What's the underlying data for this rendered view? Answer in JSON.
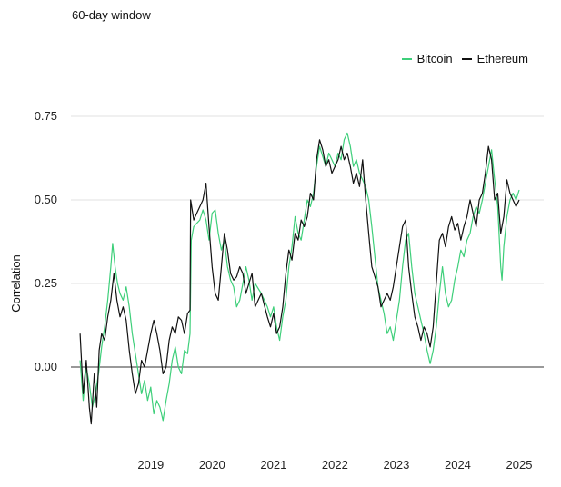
{
  "header": {
    "subtitle": "60-day window"
  },
  "legend": [
    {
      "name": "Bitcoin",
      "color": "#3ecf7a"
    },
    {
      "name": "Ethereum",
      "color": "#111111"
    }
  ],
  "chart_data": {
    "type": "line",
    "title": "",
    "subtitle": "60-day window",
    "xlabel": "",
    "ylabel": "Correlation",
    "ylim": [
      -0.2,
      0.75
    ],
    "yticks": [
      0.0,
      0.25,
      0.5,
      0.75
    ],
    "ytick_labels": [
      "0.00",
      "0.25",
      "0.50",
      "0.75"
    ],
    "xlim": [
      2018.2,
      2025.9
    ],
    "xticks": [
      2019,
      2020,
      2021,
      2022,
      2023,
      2024,
      2025
    ],
    "xtick_labels": [
      "2019",
      "2020",
      "2021",
      "2022",
      "2023",
      "2024",
      "2025"
    ],
    "grid": "horizontal",
    "legend_position": "top-right",
    "series": [
      {
        "name": "Bitcoin",
        "color": "#3ecf7a",
        "points": [
          [
            2018.35,
            0.02
          ],
          [
            2018.4,
            -0.1
          ],
          [
            2018.45,
            0.0
          ],
          [
            2018.5,
            -0.05
          ],
          [
            2018.55,
            -0.12
          ],
          [
            2018.6,
            -0.08
          ],
          [
            2018.65,
            -0.02
          ],
          [
            2018.7,
            0.06
          ],
          [
            2018.75,
            0.12
          ],
          [
            2018.8,
            0.2
          ],
          [
            2018.85,
            0.3
          ],
          [
            2018.88,
            0.37
          ],
          [
            2018.92,
            0.3
          ],
          [
            2018.96,
            0.25
          ],
          [
            2019.0,
            0.22
          ],
          [
            2019.05,
            0.2
          ],
          [
            2019.1,
            0.24
          ],
          [
            2019.15,
            0.18
          ],
          [
            2019.2,
            0.1
          ],
          [
            2019.25,
            0.04
          ],
          [
            2019.3,
            -0.02
          ],
          [
            2019.35,
            -0.08
          ],
          [
            2019.4,
            -0.04
          ],
          [
            2019.45,
            -0.1
          ],
          [
            2019.5,
            -0.06
          ],
          [
            2019.55,
            -0.14
          ],
          [
            2019.6,
            -0.1
          ],
          [
            2019.65,
            -0.12
          ],
          [
            2019.7,
            -0.16
          ],
          [
            2019.75,
            -0.1
          ],
          [
            2019.8,
            -0.05
          ],
          [
            2019.85,
            0.02
          ],
          [
            2019.9,
            0.06
          ],
          [
            2019.95,
            0.0
          ],
          [
            2020.0,
            -0.02
          ],
          [
            2020.05,
            0.05
          ],
          [
            2020.1,
            0.04
          ],
          [
            2020.14,
            0.1
          ],
          [
            2020.16,
            0.38
          ],
          [
            2020.2,
            0.42
          ],
          [
            2020.3,
            0.44
          ],
          [
            2020.35,
            0.47
          ],
          [
            2020.4,
            0.44
          ],
          [
            2020.45,
            0.38
          ],
          [
            2020.5,
            0.46
          ],
          [
            2020.55,
            0.47
          ],
          [
            2020.6,
            0.4
          ],
          [
            2020.65,
            0.35
          ],
          [
            2020.7,
            0.38
          ],
          [
            2020.75,
            0.3
          ],
          [
            2020.8,
            0.26
          ],
          [
            2020.85,
            0.24
          ],
          [
            2020.9,
            0.18
          ],
          [
            2020.95,
            0.2
          ],
          [
            2021.0,
            0.25
          ],
          [
            2021.05,
            0.3
          ],
          [
            2021.1,
            0.26
          ],
          [
            2021.15,
            0.2
          ],
          [
            2021.2,
            0.25
          ],
          [
            2021.3,
            0.22
          ],
          [
            2021.4,
            0.18
          ],
          [
            2021.45,
            0.15
          ],
          [
            2021.5,
            0.18
          ],
          [
            2021.55,
            0.12
          ],
          [
            2021.6,
            0.08
          ],
          [
            2021.65,
            0.15
          ],
          [
            2021.7,
            0.2
          ],
          [
            2021.75,
            0.3
          ],
          [
            2021.8,
            0.36
          ],
          [
            2021.85,
            0.45
          ],
          [
            2021.9,
            0.4
          ],
          [
            2021.95,
            0.38
          ],
          [
            2022.0,
            0.44
          ],
          [
            2022.05,
            0.5
          ],
          [
            2022.1,
            0.48
          ],
          [
            2022.15,
            0.52
          ],
          [
            2022.2,
            0.6
          ],
          [
            2022.25,
            0.66
          ],
          [
            2022.3,
            0.63
          ],
          [
            2022.35,
            0.6
          ],
          [
            2022.4,
            0.64
          ],
          [
            2022.45,
            0.62
          ],
          [
            2022.5,
            0.6
          ],
          [
            2022.55,
            0.64
          ],
          [
            2022.6,
            0.62
          ],
          [
            2022.65,
            0.68
          ],
          [
            2022.7,
            0.7
          ],
          [
            2022.75,
            0.66
          ],
          [
            2022.8,
            0.6
          ],
          [
            2022.85,
            0.62
          ],
          [
            2022.9,
            0.58
          ],
          [
            2022.95,
            0.56
          ],
          [
            2023.0,
            0.54
          ],
          [
            2023.05,
            0.5
          ],
          [
            2023.1,
            0.42
          ],
          [
            2023.15,
            0.33
          ],
          [
            2023.2,
            0.24
          ],
          [
            2023.25,
            0.2
          ],
          [
            2023.3,
            0.16
          ],
          [
            2023.35,
            0.1
          ],
          [
            2023.4,
            0.12
          ],
          [
            2023.45,
            0.08
          ],
          [
            2023.5,
            0.14
          ],
          [
            2023.55,
            0.2
          ],
          [
            2023.6,
            0.3
          ],
          [
            2023.65,
            0.38
          ],
          [
            2023.7,
            0.4
          ],
          [
            2023.75,
            0.3
          ],
          [
            2023.8,
            0.22
          ],
          [
            2023.85,
            0.18
          ],
          [
            2023.9,
            0.14
          ],
          [
            2023.95,
            0.1
          ],
          [
            2024.0,
            0.05
          ],
          [
            2024.05,
            0.01
          ],
          [
            2024.1,
            0.05
          ],
          [
            2024.15,
            0.12
          ],
          [
            2024.2,
            0.22
          ],
          [
            2024.25,
            0.3
          ],
          [
            2024.3,
            0.22
          ],
          [
            2024.35,
            0.18
          ],
          [
            2024.4,
            0.2
          ],
          [
            2024.45,
            0.26
          ],
          [
            2024.5,
            0.3
          ],
          [
            2024.55,
            0.35
          ],
          [
            2024.6,
            0.33
          ],
          [
            2024.65,
            0.38
          ],
          [
            2024.7,
            0.4
          ],
          [
            2024.75,
            0.45
          ],
          [
            2024.8,
            0.48
          ],
          [
            2024.85,
            0.46
          ],
          [
            2024.9,
            0.5
          ],
          [
            2024.95,
            0.55
          ],
          [
            2025.0,
            0.6
          ],
          [
            2025.05,
            0.65
          ],
          [
            2025.1,
            0.56
          ],
          [
            2025.15,
            0.48
          ],
          [
            2025.2,
            0.3
          ],
          [
            2025.22,
            0.26
          ],
          [
            2025.25,
            0.36
          ],
          [
            2025.3,
            0.45
          ],
          [
            2025.35,
            0.5
          ],
          [
            2025.4,
            0.52
          ],
          [
            2025.45,
            0.5
          ],
          [
            2025.5,
            0.53
          ]
        ]
      },
      {
        "name": "Ethereum",
        "color": "#111111",
        "points": [
          [
            2018.35,
            0.1
          ],
          [
            2018.4,
            -0.08
          ],
          [
            2018.45,
            0.02
          ],
          [
            2018.5,
            -0.12
          ],
          [
            2018.53,
            -0.17
          ],
          [
            2018.58,
            -0.02
          ],
          [
            2018.62,
            -0.12
          ],
          [
            2018.66,
            0.05
          ],
          [
            2018.7,
            0.1
          ],
          [
            2018.75,
            0.08
          ],
          [
            2018.8,
            0.15
          ],
          [
            2018.85,
            0.2
          ],
          [
            2018.9,
            0.28
          ],
          [
            2018.95,
            0.2
          ],
          [
            2019.0,
            0.15
          ],
          [
            2019.05,
            0.18
          ],
          [
            2019.1,
            0.14
          ],
          [
            2019.15,
            0.05
          ],
          [
            2019.2,
            -0.02
          ],
          [
            2019.25,
            -0.08
          ],
          [
            2019.3,
            -0.05
          ],
          [
            2019.35,
            0.02
          ],
          [
            2019.4,
            0.0
          ],
          [
            2019.45,
            0.05
          ],
          [
            2019.5,
            0.1
          ],
          [
            2019.55,
            0.14
          ],
          [
            2019.6,
            0.1
          ],
          [
            2019.65,
            0.05
          ],
          [
            2019.7,
            -0.02
          ],
          [
            2019.75,
            0.0
          ],
          [
            2019.8,
            0.08
          ],
          [
            2019.85,
            0.12
          ],
          [
            2019.9,
            0.1
          ],
          [
            2019.95,
            0.15
          ],
          [
            2020.0,
            0.14
          ],
          [
            2020.05,
            0.1
          ],
          [
            2020.1,
            0.16
          ],
          [
            2020.14,
            0.17
          ],
          [
            2020.15,
            0.5
          ],
          [
            2020.2,
            0.44
          ],
          [
            2020.25,
            0.46
          ],
          [
            2020.3,
            0.48
          ],
          [
            2020.35,
            0.5
          ],
          [
            2020.4,
            0.55
          ],
          [
            2020.45,
            0.42
          ],
          [
            2020.5,
            0.3
          ],
          [
            2020.55,
            0.22
          ],
          [
            2020.6,
            0.2
          ],
          [
            2020.65,
            0.3
          ],
          [
            2020.7,
            0.4
          ],
          [
            2020.75,
            0.35
          ],
          [
            2020.8,
            0.28
          ],
          [
            2020.85,
            0.26
          ],
          [
            2020.9,
            0.27
          ],
          [
            2020.95,
            0.3
          ],
          [
            2021.0,
            0.28
          ],
          [
            2021.05,
            0.22
          ],
          [
            2021.1,
            0.25
          ],
          [
            2021.15,
            0.28
          ],
          [
            2021.2,
            0.18
          ],
          [
            2021.3,
            0.22
          ],
          [
            2021.4,
            0.15
          ],
          [
            2021.45,
            0.12
          ],
          [
            2021.5,
            0.16
          ],
          [
            2021.55,
            0.1
          ],
          [
            2021.6,
            0.12
          ],
          [
            2021.65,
            0.18
          ],
          [
            2021.7,
            0.28
          ],
          [
            2021.75,
            0.35
          ],
          [
            2021.8,
            0.32
          ],
          [
            2021.85,
            0.4
          ],
          [
            2021.9,
            0.38
          ],
          [
            2021.95,
            0.44
          ],
          [
            2022.0,
            0.42
          ],
          [
            2022.05,
            0.45
          ],
          [
            2022.1,
            0.52
          ],
          [
            2022.15,
            0.5
          ],
          [
            2022.2,
            0.62
          ],
          [
            2022.25,
            0.68
          ],
          [
            2022.3,
            0.65
          ],
          [
            2022.35,
            0.6
          ],
          [
            2022.4,
            0.62
          ],
          [
            2022.45,
            0.58
          ],
          [
            2022.5,
            0.6
          ],
          [
            2022.55,
            0.62
          ],
          [
            2022.6,
            0.66
          ],
          [
            2022.65,
            0.62
          ],
          [
            2022.7,
            0.64
          ],
          [
            2022.75,
            0.6
          ],
          [
            2022.8,
            0.55
          ],
          [
            2022.85,
            0.58
          ],
          [
            2022.9,
            0.54
          ],
          [
            2022.95,
            0.62
          ],
          [
            2023.0,
            0.5
          ],
          [
            2023.05,
            0.4
          ],
          [
            2023.1,
            0.3
          ],
          [
            2023.15,
            0.27
          ],
          [
            2023.2,
            0.24
          ],
          [
            2023.25,
            0.18
          ],
          [
            2023.3,
            0.2
          ],
          [
            2023.35,
            0.22
          ],
          [
            2023.4,
            0.2
          ],
          [
            2023.45,
            0.24
          ],
          [
            2023.5,
            0.3
          ],
          [
            2023.55,
            0.36
          ],
          [
            2023.6,
            0.42
          ],
          [
            2023.65,
            0.44
          ],
          [
            2023.7,
            0.3
          ],
          [
            2023.75,
            0.22
          ],
          [
            2023.8,
            0.15
          ],
          [
            2023.85,
            0.12
          ],
          [
            2023.9,
            0.08
          ],
          [
            2023.95,
            0.12
          ],
          [
            2024.0,
            0.1
          ],
          [
            2024.05,
            0.06
          ],
          [
            2024.1,
            0.12
          ],
          [
            2024.15,
            0.25
          ],
          [
            2024.2,
            0.38
          ],
          [
            2024.25,
            0.4
          ],
          [
            2024.3,
            0.36
          ],
          [
            2024.35,
            0.42
          ],
          [
            2024.4,
            0.45
          ],
          [
            2024.45,
            0.41
          ],
          [
            2024.5,
            0.43
          ],
          [
            2024.55,
            0.38
          ],
          [
            2024.6,
            0.42
          ],
          [
            2024.65,
            0.45
          ],
          [
            2024.7,
            0.5
          ],
          [
            2024.75,
            0.46
          ],
          [
            2024.8,
            0.42
          ],
          [
            2024.85,
            0.5
          ],
          [
            2024.9,
            0.52
          ],
          [
            2024.95,
            0.58
          ],
          [
            2025.0,
            0.66
          ],
          [
            2025.05,
            0.62
          ],
          [
            2025.1,
            0.5
          ],
          [
            2025.15,
            0.52
          ],
          [
            2025.2,
            0.4
          ],
          [
            2025.25,
            0.45
          ],
          [
            2025.3,
            0.56
          ],
          [
            2025.35,
            0.52
          ],
          [
            2025.4,
            0.5
          ],
          [
            2025.45,
            0.48
          ],
          [
            2025.5,
            0.5
          ]
        ]
      }
    ]
  }
}
